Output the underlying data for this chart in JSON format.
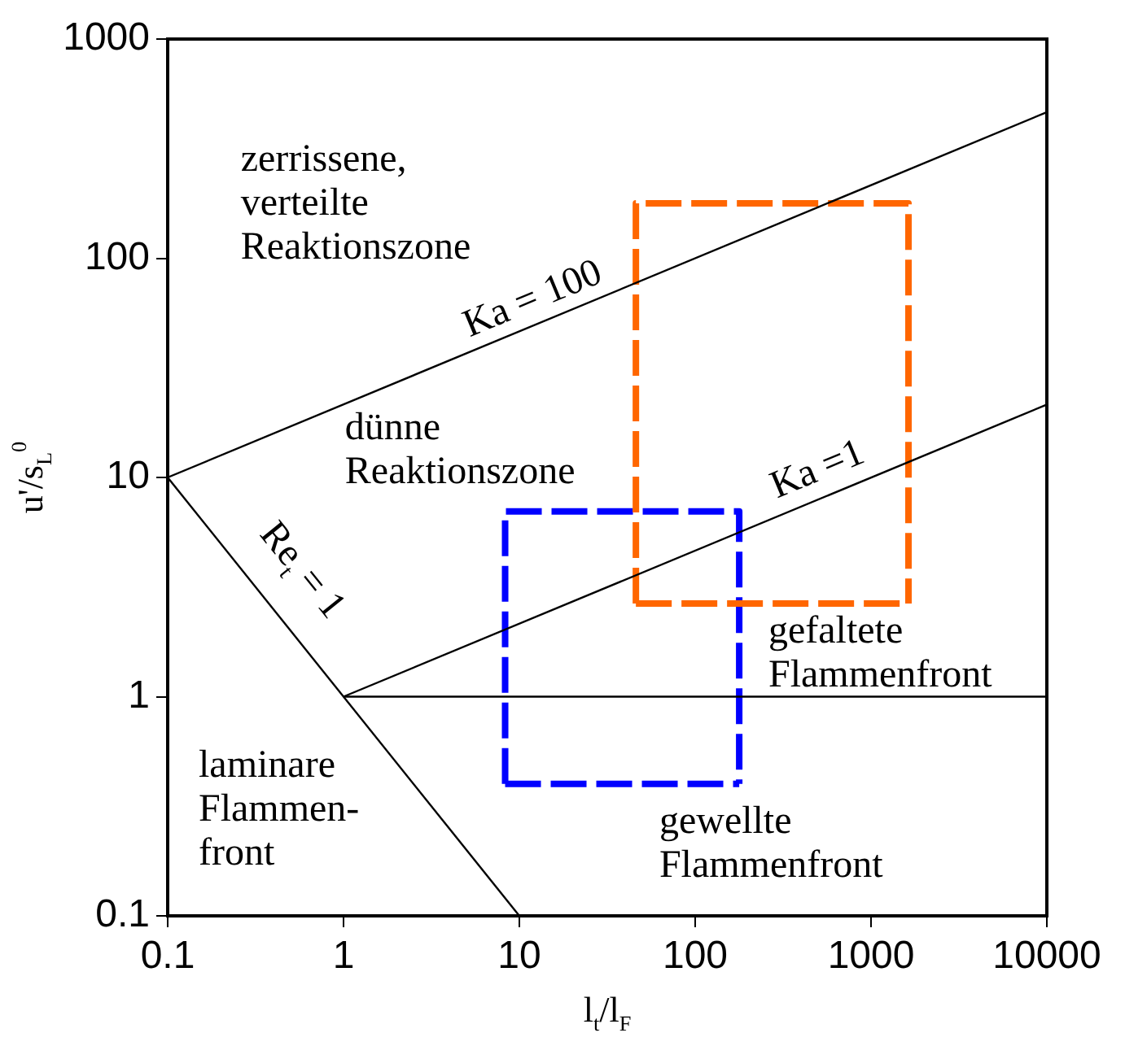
{
  "chart_data": {
    "type": "line",
    "xlabel": "l$_{t}$/l$_{F}$",
    "ylabel": "u'/s$_{L}$$^{0}$",
    "log": "xy",
    "grid": false,
    "legend": false,
    "marker": "none",
    "xlim": [
      0.1,
      10000
    ],
    "xticks": [
      0.1,
      1,
      10,
      100,
      1000,
      10000
    ],
    "ylim": [
      0.1,
      1000
    ],
    "yticks": [
      0.1,
      1,
      10,
      100,
      1000
    ],
    "series": [
      {
        "color": "#000000",
        "x": [
          0.1,
          10000
        ],
        "values": [
          10,
          464
        ],
        "line_style": "solid"
      },
      {
        "color": "#000000",
        "x": [
          1,
          10000
        ],
        "values": [
          1,
          21.5
        ],
        "line_style": "solid"
      },
      {
        "color": "#000000",
        "x": [
          0.1,
          10
        ],
        "values": [
          10,
          0.1
        ],
        "line_style": "solid"
      },
      {
        "color": "#000000",
        "x": [
          1,
          10000
        ],
        "values": [
          1,
          1
        ],
        "line_style": "solid"
      },
      {
        "color": "#ff6600",
        "x": [
          46,
          46,
          1633,
          1633
        ],
        "values": [
          2.66,
          178,
          178,
          2.66
        ],
        "line_style": "dashed"
      },
      {
        "color": "#ff6600",
        "x": [
          46,
          1633
        ],
        "values": [
          2.66,
          2.66
        ],
        "line_style": "dashed"
      },
      {
        "color": "#0000ff",
        "x": [
          8.3,
          8.3,
          178,
          178
        ],
        "values": [
          0.4,
          7,
          7,
          0.4
        ],
        "line_style": "dashed"
      },
      {
        "color": "#0000ff",
        "x": [
          8.3,
          178
        ],
        "values": [
          0.4,
          0.4
        ],
        "line_style": "dashed"
      }
    ],
    "annotations": [
      "zerrissene,\nverteilte\nReaktionszone",
      "Ka = 100",
      "dünne\nReaktionszone",
      "Ka =1",
      "Re$_{t}$ = 1",
      "gefaltete\nFlammenfront",
      "laminare\nFlammen-\nfront",
      "gewellte\nFlammenfront"
    ]
  }
}
